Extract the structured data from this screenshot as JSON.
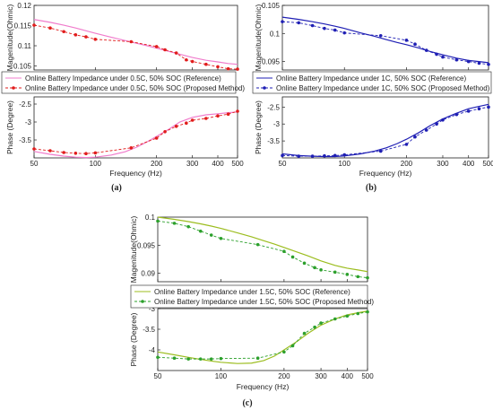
{
  "colors": {
    "red": "#e11c1c",
    "red_ref": "#f07ccc",
    "blue": "#1f1fb4",
    "green": "#2ca02c",
    "green_ref": "#9cbd1f",
    "axis": "#222222",
    "grid": "#cccccc"
  },
  "chart_data": [
    {
      "type": "line",
      "caption": "(a)",
      "legend_placement": "between-panels",
      "legend": [
        "Online Battery Impedance under 0.5C, 50% SOC (Reference)",
        "Online Battery Impedance under 0.5C, 50% SOC (Proposed Method)"
      ],
      "xlabel": "Frequency (Hz)",
      "xscale": "log",
      "xlim": [
        50,
        500
      ],
      "xticks": [
        "50",
        "100",
        "200",
        "300",
        "400",
        "500"
      ],
      "panels": [
        {
          "ylabel": "Magenitude(Ohmic)",
          "ylim": [
            0.104,
            0.12
          ],
          "yticks": [
            "0.12",
            "0.115",
            "0.11",
            "0.105"
          ],
          "series": [
            {
              "style": "solid",
              "color": "#f07ccc",
              "x": [
                50,
                60,
                70,
                80,
                90,
                100,
                120,
                140,
                160,
                180,
                200,
                230,
                260,
                300,
                350,
                400,
                450,
                500
              ],
              "y": [
                0.1165,
                0.1158,
                0.1151,
                0.1144,
                0.1137,
                0.1131,
                0.1121,
                0.1113,
                0.1106,
                0.11,
                0.1094,
                0.1086,
                0.1079,
                0.1071,
                0.1064,
                0.106,
                0.1056,
                0.1054
              ]
            },
            {
              "style": "dashed-marker",
              "color": "#e11c1c",
              "x": [
                50,
                60,
                70,
                80,
                90,
                100,
                150,
                200,
                220,
                250,
                280,
                300,
                350,
                400,
                450,
                500
              ],
              "y": [
                0.1151,
                0.1144,
                0.1135,
                0.1127,
                0.1122,
                0.1116,
                0.111,
                0.1098,
                0.109,
                0.1082,
                0.1065,
                0.1061,
                0.1054,
                0.1048,
                0.1043,
                0.1042
              ]
            }
          ]
        },
        {
          "ylabel": "Phase (Degree)",
          "ylim": [
            -4,
            -2.3
          ],
          "yticks": [
            "-2.5",
            "-3",
            "-3.5"
          ],
          "series": [
            {
              "style": "solid",
              "color": "#f07ccc",
              "x": [
                50,
                60,
                70,
                80,
                90,
                100,
                120,
                140,
                160,
                180,
                200,
                230,
                260,
                300,
                350,
                400,
                450,
                500
              ],
              "y": [
                -3.82,
                -3.9,
                -3.95,
                -3.98,
                -3.99,
                -3.98,
                -3.92,
                -3.83,
                -3.7,
                -3.55,
                -3.4,
                -3.2,
                -3.0,
                -2.87,
                -2.8,
                -2.77,
                -2.74,
                -2.72
              ]
            },
            {
              "style": "dashed-marker",
              "color": "#e11c1c",
              "x": [
                50,
                60,
                70,
                80,
                90,
                100,
                150,
                200,
                220,
                250,
                280,
                300,
                350,
                400,
                450,
                500
              ],
              "y": [
                -3.75,
                -3.8,
                -3.85,
                -3.87,
                -3.88,
                -3.86,
                -3.72,
                -3.45,
                -3.27,
                -3.12,
                -3.03,
                -2.95,
                -2.9,
                -2.83,
                -2.78,
                -2.7
              ]
            }
          ]
        }
      ]
    },
    {
      "type": "line",
      "caption": "(b)",
      "legend_placement": "between-panels",
      "legend": [
        "Online Battery Impedance under 1C, 50% SOC (Reference)",
        "Online Battery Impedance under 1C, 50% SOC  (Proposed Method)"
      ],
      "xlabel": "Frequency (Hz)",
      "xscale": "log",
      "xlim": [
        50,
        500
      ],
      "xticks": [
        "50",
        "100",
        "200",
        "300",
        "400",
        "500"
      ],
      "panels": [
        {
          "ylabel": "Magenitude(Ohmic)",
          "ylim": [
            0.0935,
            0.105
          ],
          "yticks": [
            "0.105",
            "0.1",
            "0.095"
          ],
          "series": [
            {
              "style": "solid",
              "color": "#1f1fb4",
              "x": [
                50,
                60,
                70,
                80,
                90,
                100,
                120,
                140,
                160,
                180,
                200,
                230,
                260,
                300,
                350,
                400,
                450,
                500
              ],
              "y": [
                0.1029,
                0.1025,
                0.1021,
                0.1017,
                0.1013,
                0.1009,
                0.1001,
                0.0995,
                0.0989,
                0.0984,
                0.098,
                0.0974,
                0.0968,
                0.0962,
                0.0956,
                0.0952,
                0.095,
                0.0948
              ]
            },
            {
              "style": "dashed-marker",
              "color": "#1f1fb4",
              "x": [
                50,
                60,
                70,
                80,
                90,
                100,
                150,
                200,
                220,
                250,
                280,
                300,
                350,
                400,
                450,
                500
              ],
              "y": [
                0.1021,
                0.1019,
                0.1014,
                0.1009,
                0.1006,
                0.1001,
                0.0996,
                0.0988,
                0.0981,
                0.097,
                0.0963,
                0.0958,
                0.0953,
                0.095,
                0.0947,
                0.0945
              ]
            }
          ]
        },
        {
          "ylabel": "Phase (Degree)",
          "ylim": [
            -4,
            -2.2
          ],
          "yticks": [
            "-2.5",
            "-3",
            "-3.5"
          ],
          "series": [
            {
              "style": "solid",
              "color": "#1f1fb4",
              "x": [
                50,
                60,
                70,
                80,
                90,
                100,
                120,
                140,
                160,
                180,
                200,
                230,
                260,
                300,
                350,
                400,
                450,
                500
              ],
              "y": [
                -3.88,
                -3.93,
                -3.95,
                -3.96,
                -3.96,
                -3.94,
                -3.88,
                -3.8,
                -3.7,
                -3.58,
                -3.45,
                -3.25,
                -3.05,
                -2.85,
                -2.68,
                -2.55,
                -2.48,
                -2.42
              ]
            },
            {
              "style": "dashed-marker",
              "color": "#1f1fb4",
              "x": [
                50,
                60,
                70,
                80,
                90,
                100,
                150,
                200,
                220,
                250,
                280,
                300,
                350,
                400,
                450,
                500
              ],
              "y": [
                -3.93,
                -3.95,
                -3.95,
                -3.94,
                -3.93,
                -3.91,
                -3.8,
                -3.6,
                -3.38,
                -3.18,
                -3.0,
                -2.88,
                -2.72,
                -2.62,
                -2.55,
                -2.5
              ]
            }
          ]
        }
      ]
    },
    {
      "type": "line",
      "caption": "(c)",
      "legend_placement": "between-panels",
      "legend": [
        "Online Battery Impedance under 1.5C, 50% SOC (Reference)",
        "Online Battery Impedance under 1.5C, 50% SOC (Proposed Method)"
      ],
      "xlabel": "Frequency (Hz)",
      "xscale": "log",
      "xlim": [
        50,
        500
      ],
      "xticks": [
        "50",
        "100",
        "200",
        "300",
        "400",
        "500"
      ],
      "panels": [
        {
          "ylabel": "Magenitude(Ohmic)",
          "ylim": [
            0.0885,
            0.1
          ],
          "yticks": [
            "0.1",
            "0.095",
            "0.09"
          ],
          "series": [
            {
              "style": "solid",
              "color": "#9cbd1f",
              "x": [
                50,
                60,
                70,
                80,
                90,
                100,
                120,
                140,
                160,
                180,
                200,
                230,
                260,
                300,
                350,
                400,
                450,
                500
              ],
              "y": [
                0.1,
                0.0996,
                0.0992,
                0.0988,
                0.0984,
                0.098,
                0.0972,
                0.0965,
                0.0958,
                0.0952,
                0.0946,
                0.0938,
                0.0931,
                0.0922,
                0.0914,
                0.0909,
                0.0906,
                0.0903
              ]
            },
            {
              "style": "dashed-marker",
              "color": "#2ca02c",
              "x": [
                50,
                60,
                70,
                80,
                90,
                100,
                150,
                200,
                220,
                250,
                280,
                300,
                350,
                400,
                450,
                500
              ],
              "y": [
                0.0993,
                0.0989,
                0.0983,
                0.0975,
                0.0968,
                0.0962,
                0.0951,
                0.0939,
                0.0929,
                0.0918,
                0.091,
                0.0906,
                0.0902,
                0.0898,
                0.0894,
                0.0892
              ]
            }
          ]
        },
        {
          "ylabel": "Phase (Degree)",
          "ylim": [
            -4.5,
            -3
          ],
          "yticks": [
            "-3",
            "-3.5",
            "-4"
          ],
          "series": [
            {
              "style": "solid",
              "color": "#9cbd1f",
              "x": [
                50,
                60,
                70,
                80,
                90,
                100,
                120,
                140,
                160,
                180,
                200,
                230,
                260,
                300,
                350,
                400,
                450,
                500
              ],
              "y": [
                -4.05,
                -4.12,
                -4.18,
                -4.23,
                -4.27,
                -4.3,
                -4.33,
                -4.32,
                -4.26,
                -4.15,
                -4.0,
                -3.8,
                -3.6,
                -3.4,
                -3.25,
                -3.15,
                -3.1,
                -3.06
              ]
            },
            {
              "style": "dashed-marker",
              "color": "#2ca02c",
              "x": [
                50,
                60,
                70,
                80,
                90,
                100,
                150,
                200,
                220,
                250,
                280,
                300,
                350,
                400,
                450,
                500
              ],
              "y": [
                -4.18,
                -4.2,
                -4.22,
                -4.22,
                -4.22,
                -4.21,
                -4.2,
                -4.05,
                -3.9,
                -3.6,
                -3.45,
                -3.35,
                -3.25,
                -3.18,
                -3.12,
                -3.08
              ]
            }
          ]
        }
      ]
    }
  ]
}
